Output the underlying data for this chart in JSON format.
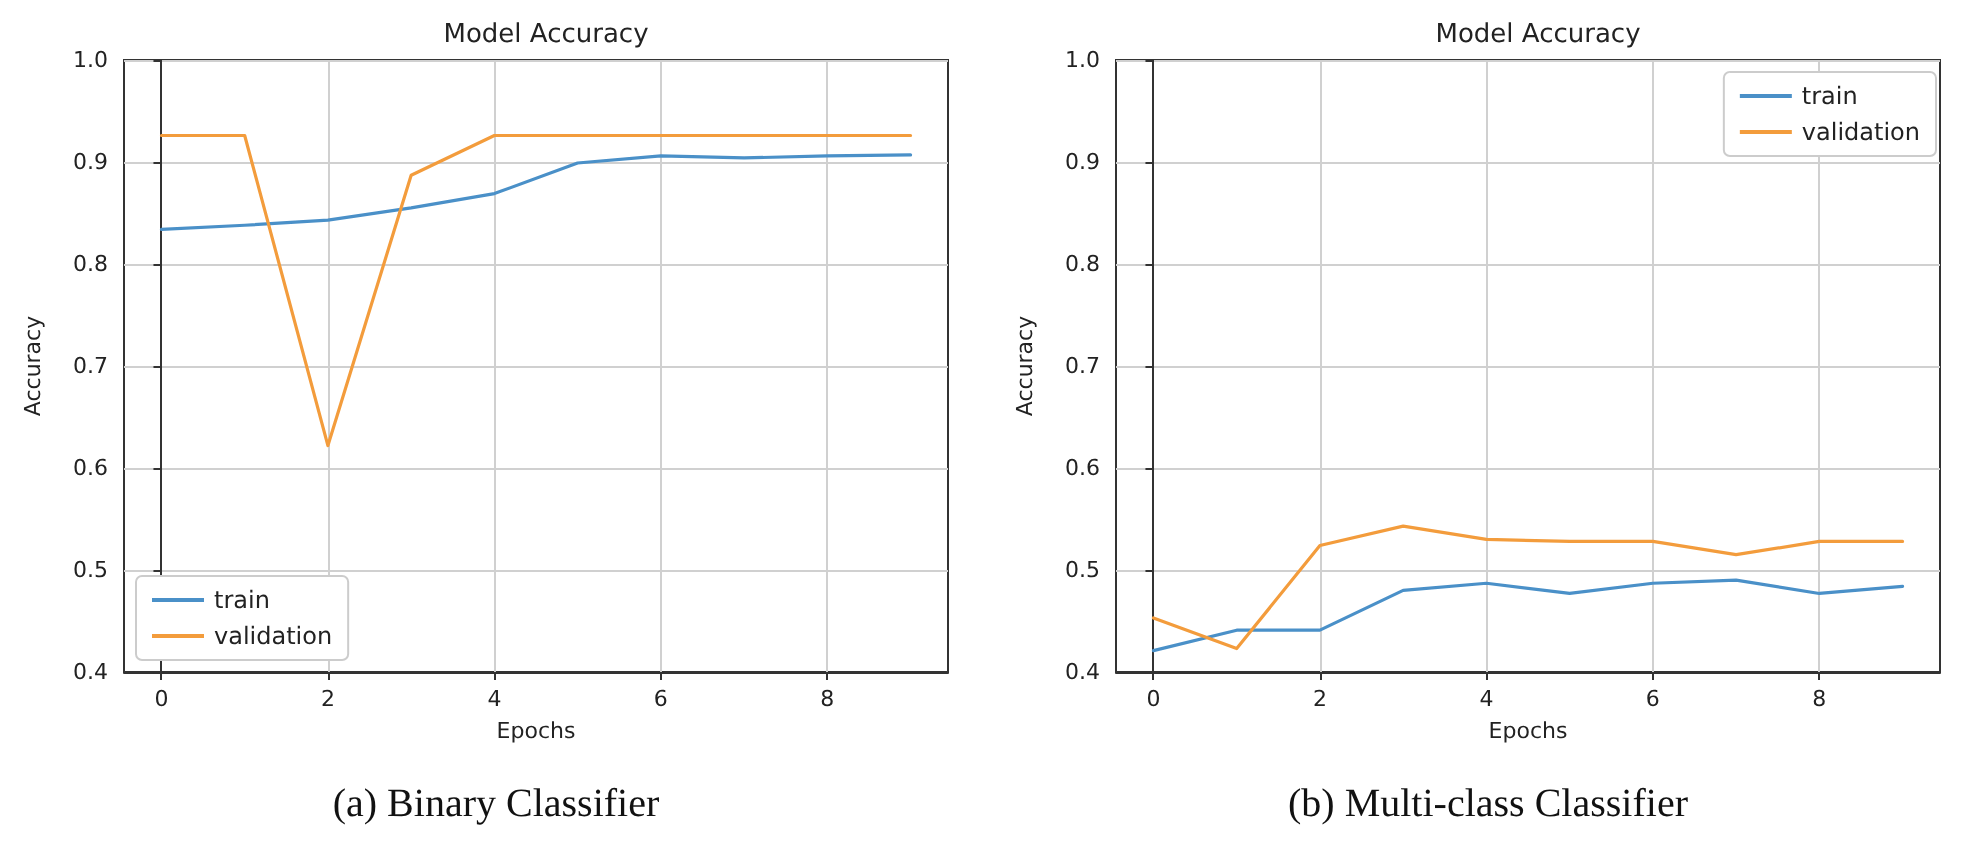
{
  "chart_data": [
    {
      "type": "line",
      "title": "Model Accuracy",
      "xlabel": "Epochs",
      "ylabel": "Accuracy",
      "annotations": [
        "(a) Binary Classifier"
      ],
      "x": [
        0,
        1,
        2,
        3,
        4,
        5,
        6,
        7,
        8,
        9
      ],
      "series": [
        {
          "name": "train",
          "color": "#4a90c8",
          "values": [
            0.834,
            0.838,
            0.843,
            0.855,
            0.869,
            0.899,
            0.906,
            0.904,
            0.906,
            0.907
          ]
        },
        {
          "name": "validation",
          "color": "#f39c3c",
          "values": [
            0.926,
            0.926,
            0.622,
            0.887,
            0.926,
            0.926,
            0.926,
            0.926,
            0.926,
            0.926
          ]
        }
      ],
      "xlim": [
        -0.45,
        9.45
      ],
      "xticks": [
        0,
        2,
        4,
        6,
        8
      ],
      "ylim": [
        0.4,
        1.0
      ],
      "yticks": [
        0.4,
        0.5,
        0.6,
        0.7,
        0.8,
        0.9,
        {
          "value": 1.0,
          "label": "1.0"
        }
      ],
      "grid": true,
      "legend": "bottom left",
      "marker": "none",
      "line_style": "solid"
    },
    {
      "type": "line",
      "title": "Model Accuracy",
      "xlabel": "Epochs",
      "ylabel": "Accuracy",
      "annotations": [
        "(b) Multi-class Classifier"
      ],
      "x": [
        0,
        1,
        2,
        3,
        4,
        5,
        6,
        7,
        8,
        9
      ],
      "series": [
        {
          "name": "train",
          "color": "#4a90c8",
          "values": [
            0.421,
            0.441,
            0.441,
            0.48,
            0.487,
            0.477,
            0.487,
            0.49,
            0.477,
            0.484
          ]
        },
        {
          "name": "validation",
          "color": "#f39c3c",
          "values": [
            0.453,
            0.423,
            0.524,
            0.543,
            0.53,
            0.528,
            0.528,
            0.515,
            0.528,
            0.528
          ]
        }
      ],
      "xlim": [
        -0.45,
        9.45
      ],
      "xticks": [
        0,
        2,
        4,
        6,
        8
      ],
      "ylim": [
        0.4,
        1.0
      ],
      "yticks": [
        0.4,
        0.5,
        0.6,
        0.7,
        0.8,
        0.9,
        {
          "value": 1.0,
          "label": "1.0"
        }
      ],
      "grid": true,
      "legend": "top right",
      "marker": "none",
      "line_style": "solid"
    }
  ]
}
